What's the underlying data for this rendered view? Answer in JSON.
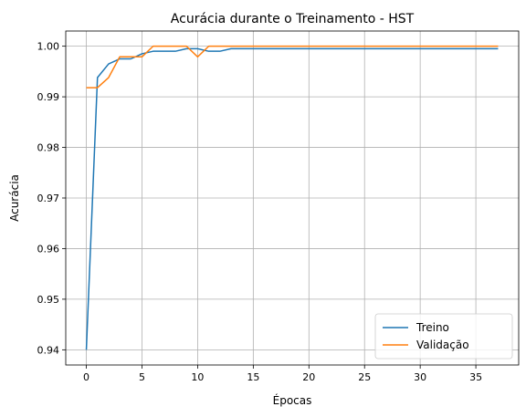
{
  "chart_data": {
    "type": "line",
    "title": "Acurácia durante o Treinamento - HST",
    "xlabel": "Épocas",
    "ylabel": "Acurácia",
    "xlim": [
      -1.85,
      38.85
    ],
    "ylim": [
      0.937,
      1.003
    ],
    "xticks": [
      0,
      5,
      10,
      15,
      20,
      25,
      30,
      35
    ],
    "yticks": [
      0.94,
      0.95,
      0.96,
      0.97,
      0.98,
      0.99,
      1.0
    ],
    "ytick_labels": [
      "0.94",
      "0.95",
      "0.96",
      "0.97",
      "0.98",
      "0.99",
      "1.00"
    ],
    "grid": true,
    "legend_position": "bottom-right",
    "x": [
      0,
      1,
      2,
      3,
      4,
      5,
      6,
      7,
      8,
      9,
      10,
      11,
      12,
      13,
      14,
      15,
      16,
      17,
      18,
      19,
      20,
      21,
      22,
      23,
      24,
      25,
      26,
      27,
      28,
      29,
      30,
      31,
      32,
      33,
      34,
      35,
      36,
      37
    ],
    "series": [
      {
        "name": "Treino",
        "color": "#1f77b4",
        "values": [
          0.94,
          0.9938,
          0.9965,
          0.9975,
          0.9975,
          0.9985,
          0.999,
          0.999,
          0.999,
          0.9995,
          0.9995,
          0.999,
          0.999,
          0.9995,
          0.9995,
          0.9995,
          0.9995,
          0.9995,
          0.9995,
          0.9995,
          0.9995,
          0.9995,
          0.9995,
          0.9995,
          0.9995,
          0.9995,
          0.9995,
          0.9995,
          0.9995,
          0.9995,
          0.9995,
          0.9995,
          0.9995,
          0.9995,
          0.9995,
          0.9995,
          0.9995,
          0.9995
        ]
      },
      {
        "name": "Validação",
        "color": "#ff7f0e",
        "values": [
          0.9918,
          0.9918,
          0.9938,
          0.9979,
          0.9979,
          0.9979,
          1.0,
          1.0,
          1.0,
          1.0,
          0.9979,
          1.0,
          1.0,
          1.0,
          1.0,
          1.0,
          1.0,
          1.0,
          1.0,
          1.0,
          1.0,
          1.0,
          1.0,
          1.0,
          1.0,
          1.0,
          1.0,
          1.0,
          1.0,
          1.0,
          1.0,
          1.0,
          1.0,
          1.0,
          1.0,
          1.0,
          1.0,
          1.0
        ]
      }
    ]
  }
}
